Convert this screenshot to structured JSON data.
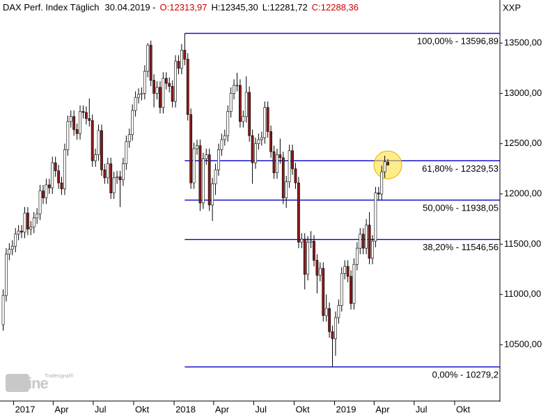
{
  "chart_data": {
    "type": "candlestick",
    "title": "DAX Perf. Index Täglich",
    "date": "30.04.2019 -",
    "quote": [
      {
        "label": "O:12313,97",
        "color": "#cc0000"
      },
      {
        "label": "H:12345,30",
        "color": "#000000"
      },
      {
        "label": "L:12281,72",
        "color": "#000000"
      },
      {
        "label": "C:12288,36",
        "color": "#cc0000"
      }
    ],
    "axis_label": "XXP",
    "watermark": {
      "brand": "Tradesignal®",
      "text": "online"
    },
    "up_color": "#ffffff",
    "down_color": "#8b1a1a",
    "level_color": "#0000cc",
    "xlim": [
      "2016-12-01",
      "2020-01-12"
    ],
    "xticks": [
      {
        "value": "2017-01-01",
        "label": "2017"
      },
      {
        "value": "2017-04-01",
        "label": "Apr"
      },
      {
        "value": "2017-07-01",
        "label": "Jul"
      },
      {
        "value": "2017-10-01",
        "label": "Okt"
      },
      {
        "value": "2018-01-01",
        "label": "2018"
      },
      {
        "value": "2018-04-01",
        "label": "Apr"
      },
      {
        "value": "2018-07-01",
        "label": "Jul"
      },
      {
        "value": "2018-10-01",
        "label": "Okt"
      },
      {
        "value": "2019-01-01",
        "label": "2019"
      },
      {
        "value": "2019-04-01",
        "label": "Apr"
      },
      {
        "value": "2019-07-01",
        "label": "Jul"
      },
      {
        "value": "2019-10-01",
        "label": "Okt"
      }
    ],
    "ylim": [
      9933,
      13929
    ],
    "yticks": [
      {
        "value": 10500,
        "label": "10500,00"
      },
      {
        "value": 11000,
        "label": "11000,00"
      },
      {
        "value": 11500,
        "label": "11500,00"
      },
      {
        "value": 12000,
        "label": "12000,00"
      },
      {
        "value": 12500,
        "label": "12500,00"
      },
      {
        "value": 13000,
        "label": "13000,00"
      },
      {
        "value": 13500,
        "label": "13500,00"
      }
    ],
    "levels": [
      {
        "label": "100,00% - 13596,89",
        "value": 13596.89
      },
      {
        "label": "61,80% - 12329,53",
        "value": 12329.53
      },
      {
        "label": "50,00% - 11938,05",
        "value": 11938.05
      },
      {
        "label": "38,20% - 11546,56",
        "value": 11546.56
      },
      {
        "label": "0,00% - 10279,2",
        "value": 10279.2
      }
    ],
    "x": [
      "2016-12-05",
      "2016-12-12",
      "2016-12-19",
      "2016-12-26",
      "2017-01-02",
      "2017-01-09",
      "2017-01-16",
      "2017-01-23",
      "2017-01-30",
      "2017-02-06",
      "2017-02-13",
      "2017-02-20",
      "2017-02-27",
      "2017-03-06",
      "2017-03-13",
      "2017-03-20",
      "2017-03-27",
      "2017-04-03",
      "2017-04-10",
      "2017-04-17",
      "2017-04-24",
      "2017-05-01",
      "2017-05-08",
      "2017-05-15",
      "2017-05-22",
      "2017-05-29",
      "2017-06-05",
      "2017-06-12",
      "2017-06-19",
      "2017-06-26",
      "2017-07-03",
      "2017-07-10",
      "2017-07-17",
      "2017-07-24",
      "2017-07-31",
      "2017-08-07",
      "2017-08-14",
      "2017-08-21",
      "2017-08-28",
      "2017-09-04",
      "2017-09-11",
      "2017-09-18",
      "2017-09-25",
      "2017-10-02",
      "2017-10-09",
      "2017-10-16",
      "2017-10-23",
      "2017-10-30",
      "2017-11-06",
      "2017-11-13",
      "2017-11-20",
      "2017-11-27",
      "2017-12-04",
      "2017-12-11",
      "2017-12-18",
      "2017-12-25",
      "2018-01-01",
      "2018-01-08",
      "2018-01-15",
      "2018-01-22",
      "2018-01-29",
      "2018-02-05",
      "2018-02-12",
      "2018-02-19",
      "2018-02-26",
      "2018-03-05",
      "2018-03-12",
      "2018-03-19",
      "2018-03-26",
      "2018-04-02",
      "2018-04-09",
      "2018-04-16",
      "2018-04-23",
      "2018-04-30",
      "2018-05-07",
      "2018-05-14",
      "2018-05-21",
      "2018-05-28",
      "2018-06-04",
      "2018-06-11",
      "2018-06-18",
      "2018-06-25",
      "2018-07-02",
      "2018-07-09",
      "2018-07-16",
      "2018-07-23",
      "2018-07-30",
      "2018-08-06",
      "2018-08-13",
      "2018-08-20",
      "2018-08-27",
      "2018-09-03",
      "2018-09-10",
      "2018-09-17",
      "2018-09-24",
      "2018-10-01",
      "2018-10-08",
      "2018-10-15",
      "2018-10-22",
      "2018-10-29",
      "2018-11-05",
      "2018-11-12",
      "2018-11-19",
      "2018-11-26",
      "2018-12-03",
      "2018-12-10",
      "2018-12-17",
      "2018-12-24",
      "2018-12-31",
      "2019-01-07",
      "2019-01-14",
      "2019-01-21",
      "2019-01-28",
      "2019-02-04",
      "2019-02-11",
      "2019-02-18",
      "2019-02-25",
      "2019-03-04",
      "2019-03-11",
      "2019-03-18",
      "2019-03-25",
      "2019-04-01",
      "2019-04-08",
      "2019-04-15",
      "2019-04-22",
      "2019-04-29"
    ],
    "open": [
      10700,
      10990,
      11400,
      11450,
      11480,
      11600,
      11630,
      11620,
      11810,
      11650,
      11670,
      11760,
      11800,
      12030,
      11960,
      12090,
      12060,
      12310,
      12230,
      12110,
      12050,
      12440,
      12720,
      12770,
      12640,
      12600,
      12820,
      12810,
      12750,
      12730,
      12330,
      12390,
      12630,
      12240,
      12160,
      12300,
      12010,
      12160,
      12170,
      12140,
      12300,
      12520,
      12590,
      12830,
      12960,
      12990,
      13000,
      13220,
      13480,
      13130,
      13000,
      13060,
      12860,
      13150,
      13100,
      13070,
      12920,
      13320,
      13250,
      13430,
      13340,
      12790,
      12110,
      12450,
      12480,
      11910,
      12350,
      12390,
      11890,
      12100,
      12240,
      12440,
      12540,
      12580,
      12820,
      13000,
      13080,
      13080,
      12720,
      12770,
      13010,
      12580,
      12310,
      12500,
      12540,
      12560,
      12860,
      12620,
      12420,
      12210,
      12390,
      12360,
      11960,
      12120,
      12430,
      12250,
      12110,
      11520,
      11550,
      11200,
      11520,
      11530,
      11340,
      11190,
      11260,
      10790,
      10860,
      10630,
      10560,
      10770,
      10890,
      11210,
      11280,
      11180,
      10910,
      11300,
      11460,
      11600,
      11460,
      11690,
      11360,
      11530,
      12010,
      11999,
      12220,
      12313.97
    ],
    "high": [
      11050,
      11460,
      11510,
      11540,
      11660,
      11690,
      11690,
      11870,
      11870,
      11730,
      11820,
      11860,
      12090,
      12090,
      12150,
      12150,
      12370,
      12370,
      12290,
      12170,
      12500,
      12780,
      12830,
      12830,
      12700,
      12880,
      12880,
      12870,
      12951,
      12790,
      12450,
      12690,
      12690,
      12300,
      12360,
      12360,
      12220,
      12230,
      12230,
      12360,
      12580,
      12650,
      12890,
      13020,
      13050,
      13060,
      13280,
      13500,
      13525,
      13190,
      13120,
      13120,
      13210,
      13210,
      13160,
      13130,
      13380,
      13380,
      13490,
      13596.89,
      13400,
      12850,
      12510,
      12540,
      12540,
      12410,
      12450,
      12450,
      12160,
      12300,
      12500,
      12600,
      12640,
      12880,
      13060,
      13140,
      13205,
      13140,
      12830,
      13170,
      13070,
      12640,
      12560,
      12600,
      12620,
      12920,
      12920,
      12680,
      12480,
      12450,
      12550,
      12420,
      12180,
      12490,
      12490,
      12310,
      12170,
      11610,
      11610,
      11580,
      11630,
      11590,
      11400,
      11320,
      11320,
      11000,
      10920,
      10690,
      10830,
      10950,
      11270,
      11340,
      11340,
      11240,
      11360,
      11520,
      11660,
      11660,
      11750,
      11820,
      11590,
      12070,
      12070,
      12280,
      12380,
      12345.3
    ],
    "low": [
      10640,
      10930,
      11340,
      11390,
      11420,
      11540,
      11560,
      11560,
      11590,
      11590,
      11610,
      11700,
      11740,
      11900,
      11900,
      12000,
      12000,
      12170,
      12050,
      11990,
      11990,
      12380,
      12660,
      12580,
      12540,
      12540,
      12750,
      12690,
      12670,
      12270,
      12270,
      12330,
      12180,
      12100,
      12100,
      11950,
      11950,
      12100,
      11870,
      12080,
      12240,
      12460,
      12530,
      12770,
      12900,
      12930,
      12940,
      13160,
      13070,
      12860,
      12940,
      12800,
      12800,
      13040,
      13010,
      12860,
      12860,
      13190,
      13190,
      13280,
      12730,
      12050,
      12050,
      12390,
      11830,
      11850,
      12290,
      11830,
      11730,
      11990,
      12180,
      12380,
      12480,
      12520,
      12760,
      12940,
      13020,
      12660,
      12660,
      12710,
      12520,
      12100,
      12250,
      12440,
      12480,
      12500,
      12560,
      12360,
      12150,
      12150,
      12300,
      11900,
      11860,
      12060,
      12190,
      12050,
      11460,
      11460,
      11050,
      11140,
      11460,
      11280,
      11010,
      11130,
      10730,
      10730,
      10570,
      10279.2,
      10390,
      10710,
      10830,
      11150,
      11120,
      10850,
      10850,
      11240,
      11400,
      11400,
      11400,
      11300,
      11300,
      11470,
      11940,
      11940,
      12160,
      12281.72
    ],
    "close": [
      10990,
      11400,
      11450,
      11480,
      11600,
      11630,
      11620,
      11810,
      11650,
      11670,
      11760,
      11800,
      12030,
      11960,
      12090,
      12060,
      12310,
      12230,
      12110,
      12050,
      12440,
      12720,
      12770,
      12640,
      12600,
      12820,
      12810,
      12750,
      12730,
      12330,
      12390,
      12630,
      12240,
      12160,
      12300,
      12010,
      12160,
      12170,
      12140,
      12300,
      12520,
      12590,
      12830,
      12960,
      12990,
      13000,
      13220,
      13480,
      13130,
      13000,
      13060,
      12860,
      13150,
      13100,
      13070,
      12920,
      13320,
      13250,
      13430,
      13340,
      12790,
      12110,
      12450,
      12480,
      11910,
      12350,
      12390,
      11890,
      12100,
      12240,
      12440,
      12540,
      12580,
      12820,
      13000,
      13080,
      13080,
      12720,
      12770,
      13010,
      12580,
      12310,
      12500,
      12540,
      12560,
      12860,
      12620,
      12420,
      12210,
      12390,
      12360,
      11960,
      12120,
      12430,
      12250,
      12110,
      11520,
      11550,
      11200,
      11520,
      11530,
      11340,
      11190,
      11260,
      10790,
      10860,
      10630,
      10560,
      10770,
      10890,
      11210,
      11280,
      11180,
      10910,
      11300,
      11460,
      11600,
      11460,
      11690,
      11360,
      11530,
      12010,
      11999,
      12220,
      12320,
      12288.36
    ]
  }
}
